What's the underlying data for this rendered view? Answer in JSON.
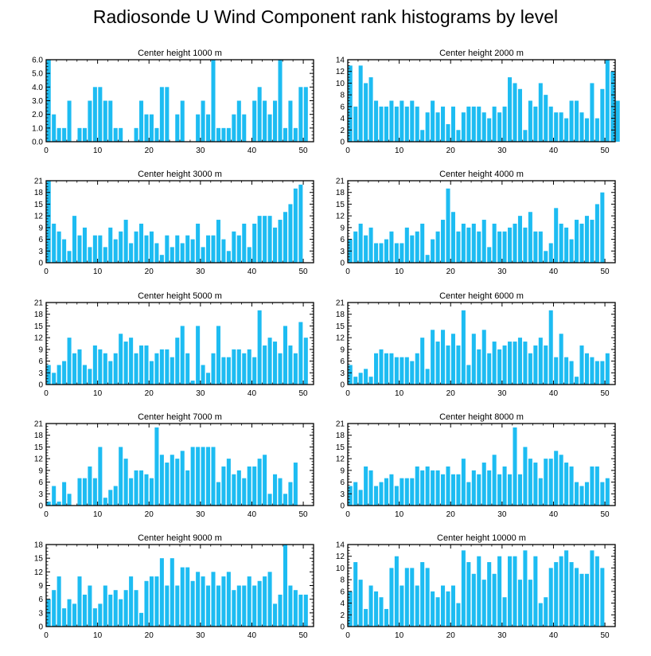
{
  "title": "Radiosonde U Wind Component rank histograms by level",
  "colors": {
    "bar": "#1dbcf2",
    "axis": "#000000",
    "background": "#ffffff"
  },
  "chart_data": [
    {
      "type": "bar",
      "title": "Center height 1000 m",
      "xlim": [
        0,
        52
      ],
      "ylim": [
        0,
        6
      ],
      "xticks": [
        0,
        10,
        20,
        30,
        40,
        50
      ],
      "yticks": [
        0,
        1,
        2,
        3,
        4,
        5,
        6
      ],
      "ytick_labels": [
        "0.0",
        "1.0",
        "2.0",
        "3.0",
        "4.0",
        "5.0",
        "6.0"
      ],
      "values": [
        6,
        2,
        1,
        1,
        3,
        0,
        1,
        1,
        3,
        4,
        4,
        3,
        3,
        1,
        1,
        0,
        0,
        1,
        3,
        2,
        2,
        1,
        4,
        4,
        0,
        2,
        3,
        0,
        0,
        2,
        3,
        2,
        6,
        1,
        1,
        1,
        2,
        3,
        2,
        0,
        3,
        4,
        3,
        2,
        3,
        6,
        1,
        3,
        1,
        4,
        4
      ]
    },
    {
      "type": "bar",
      "title": "Center height 2000 m",
      "xlim": [
        0,
        52
      ],
      "ylim": [
        0,
        14
      ],
      "xticks": [
        0,
        10,
        20,
        30,
        40,
        50
      ],
      "yticks": [
        0,
        2,
        4,
        6,
        8,
        10,
        12,
        14
      ],
      "ytick_labels": [
        "0",
        "2",
        "4",
        "6",
        "8",
        "10",
        "12",
        "14"
      ],
      "values": [
        13,
        6,
        13,
        10,
        11,
        7,
        6,
        6,
        7,
        6,
        7,
        6,
        7,
        6,
        2,
        5,
        7,
        5,
        6,
        3,
        6,
        2,
        5,
        6,
        6,
        6,
        5,
        4,
        6,
        5,
        6,
        11,
        10,
        9,
        2,
        7,
        6,
        10,
        8,
        6,
        5,
        5,
        4,
        7,
        7,
        5,
        4,
        10,
        4,
        9,
        14,
        12,
        7
      ]
    },
    {
      "type": "bar",
      "title": "Center height 3000 m",
      "xlim": [
        0,
        52
      ],
      "ylim": [
        0,
        21
      ],
      "xticks": [
        0,
        10,
        20,
        30,
        40,
        50
      ],
      "yticks": [
        0,
        3,
        6,
        9,
        12,
        15,
        18,
        21
      ],
      "ytick_labels": [
        "0",
        "3",
        "6",
        "9",
        "12",
        "15",
        "18",
        "21"
      ],
      "values": [
        21,
        10,
        8,
        6,
        3,
        12,
        7,
        9,
        4,
        7,
        7,
        4,
        9,
        6,
        8,
        11,
        5,
        8,
        10,
        7,
        8,
        5,
        2,
        7,
        4,
        7,
        5,
        7,
        6,
        10,
        4,
        7,
        7,
        11,
        6,
        3,
        8,
        7,
        10,
        4,
        10,
        12,
        12,
        12,
        9,
        11,
        13,
        15,
        19,
        20
      ]
    },
    {
      "type": "bar",
      "title": "Center height 4000 m",
      "xlim": [
        0,
        52
      ],
      "ylim": [
        0,
        21
      ],
      "xticks": [
        0,
        10,
        20,
        30,
        40,
        50
      ],
      "yticks": [
        0,
        3,
        6,
        9,
        12,
        15,
        18,
        21
      ],
      "ytick_labels": [
        "0",
        "3",
        "6",
        "9",
        "12",
        "15",
        "18",
        "21"
      ],
      "values": [
        6,
        8,
        10,
        7,
        9,
        5,
        5,
        6,
        8,
        5,
        5,
        9,
        7,
        8,
        10,
        2,
        6,
        8,
        11,
        19,
        13,
        8,
        10,
        9,
        10,
        8,
        11,
        4,
        10,
        8,
        8,
        9,
        10,
        12,
        9,
        13,
        8,
        8,
        3,
        5,
        14,
        10,
        9,
        6,
        11,
        10,
        12,
        11,
        15,
        18
      ]
    },
    {
      "type": "bar",
      "title": "Center height 5000 m",
      "xlim": [
        0,
        52
      ],
      "ylim": [
        0,
        21
      ],
      "xticks": [
        0,
        10,
        20,
        30,
        40,
        50
      ],
      "yticks": [
        0,
        3,
        6,
        9,
        12,
        15,
        18,
        21
      ],
      "ytick_labels": [
        "0",
        "3",
        "6",
        "9",
        "12",
        "15",
        "18",
        "21"
      ],
      "values": [
        5,
        3,
        5,
        6,
        12,
        8,
        9,
        5,
        4,
        10,
        9,
        8,
        6,
        8,
        13,
        11,
        12,
        8,
        10,
        10,
        6,
        8,
        9,
        9,
        7,
        12,
        15,
        8,
        1,
        15,
        5,
        3,
        8,
        15,
        7,
        7,
        9,
        9,
        8,
        9,
        7,
        19,
        10,
        12,
        11,
        8,
        15,
        10,
        8,
        16,
        12
      ]
    },
    {
      "type": "bar",
      "title": "Center height 6000 m",
      "xlim": [
        0,
        52
      ],
      "ylim": [
        0,
        21
      ],
      "xticks": [
        0,
        10,
        20,
        30,
        40,
        50
      ],
      "yticks": [
        0,
        3,
        6,
        9,
        12,
        15,
        18,
        21
      ],
      "ytick_labels": [
        "0",
        "3",
        "6",
        "9",
        "12",
        "15",
        "18",
        "21"
      ],
      "values": [
        5,
        2,
        3,
        4,
        2,
        8,
        9,
        8,
        8,
        7,
        7,
        7,
        6,
        8,
        12,
        4,
        14,
        11,
        14,
        10,
        13,
        10,
        19,
        5,
        13,
        9,
        14,
        8,
        11,
        9,
        10,
        11,
        11,
        12,
        11,
        8,
        10,
        12,
        10,
        19,
        7,
        13,
        7,
        6,
        2,
        10,
        8,
        7,
        6,
        6,
        8
      ]
    },
    {
      "type": "bar",
      "title": "Center height 7000 m",
      "xlim": [
        0,
        52
      ],
      "ylim": [
        0,
        21
      ],
      "xticks": [
        0,
        10,
        20,
        30,
        40,
        50
      ],
      "yticks": [
        0,
        3,
        6,
        9,
        12,
        15,
        18,
        21
      ],
      "ytick_labels": [
        "0",
        "3",
        "6",
        "9",
        "12",
        "15",
        "18",
        "21"
      ],
      "values": [
        1,
        5,
        1,
        6,
        3,
        0,
        7,
        7,
        10,
        7,
        15,
        2,
        4,
        5,
        15,
        12,
        7,
        9,
        9,
        8,
        7,
        20,
        13,
        11,
        13,
        12,
        14,
        9,
        15,
        15,
        15,
        15,
        15,
        6,
        10,
        12,
        8,
        9,
        7,
        10,
        10,
        12,
        13,
        3,
        8,
        7,
        3,
        6,
        11
      ]
    },
    {
      "type": "bar",
      "title": "Center height 8000 m",
      "xlim": [
        0,
        52
      ],
      "ylim": [
        0,
        21
      ],
      "xticks": [
        0,
        10,
        20,
        30,
        40,
        50
      ],
      "yticks": [
        0,
        3,
        6,
        9,
        12,
        15,
        18,
        21
      ],
      "ytick_labels": [
        "0",
        "3",
        "6",
        "9",
        "12",
        "15",
        "18",
        "21"
      ],
      "values": [
        5,
        6,
        4,
        10,
        9,
        5,
        6,
        7,
        8,
        5,
        7,
        7,
        7,
        10,
        9,
        10,
        9,
        9,
        8,
        10,
        8,
        8,
        12,
        6,
        9,
        8,
        11,
        9,
        13,
        8,
        10,
        8,
        20,
        8,
        15,
        12,
        11,
        7,
        12,
        12,
        14,
        13,
        11,
        10,
        6,
        5,
        6,
        10,
        10,
        6,
        7
      ]
    },
    {
      "type": "bar",
      "title": "Center height 9000 m",
      "xlim": [
        0,
        52
      ],
      "ylim": [
        0,
        18
      ],
      "xticks": [
        0,
        10,
        20,
        30,
        40,
        50
      ],
      "yticks": [
        0,
        3,
        6,
        9,
        12,
        15,
        18
      ],
      "ytick_labels": [
        "0",
        "3",
        "6",
        "9",
        "12",
        "15",
        "18"
      ],
      "values": [
        6,
        8,
        11,
        4,
        6,
        5,
        11,
        7,
        9,
        4,
        5,
        9,
        7,
        8,
        6,
        8,
        11,
        8,
        3,
        10,
        11,
        11,
        15,
        9,
        15,
        9,
        13,
        13,
        10,
        12,
        11,
        9,
        12,
        9,
        11,
        12,
        8,
        9,
        9,
        11,
        9,
        10,
        11,
        12,
        5,
        7,
        18,
        9,
        8,
        7,
        7
      ]
    },
    {
      "type": "bar",
      "title": "Center height 10000 m",
      "xlim": [
        0,
        52
      ],
      "ylim": [
        0,
        14
      ],
      "xticks": [
        0,
        10,
        20,
        30,
        40,
        50
      ],
      "yticks": [
        0,
        2,
        4,
        6,
        8,
        10,
        12,
        14
      ],
      "ytick_labels": [
        "0",
        "2",
        "4",
        "6",
        "8",
        "10",
        "12",
        "14"
      ],
      "values": [
        6,
        11,
        8,
        3,
        7,
        6,
        5,
        3,
        10,
        12,
        7,
        10,
        10,
        7,
        11,
        10,
        6,
        5,
        7,
        6,
        7,
        4,
        13,
        11,
        9,
        12,
        8,
        11,
        9,
        12,
        5,
        12,
        12,
        8,
        13,
        8,
        12,
        4,
        5,
        10,
        11,
        12,
        13,
        11,
        10,
        9,
        9,
        13,
        12,
        10
      ]
    }
  ]
}
